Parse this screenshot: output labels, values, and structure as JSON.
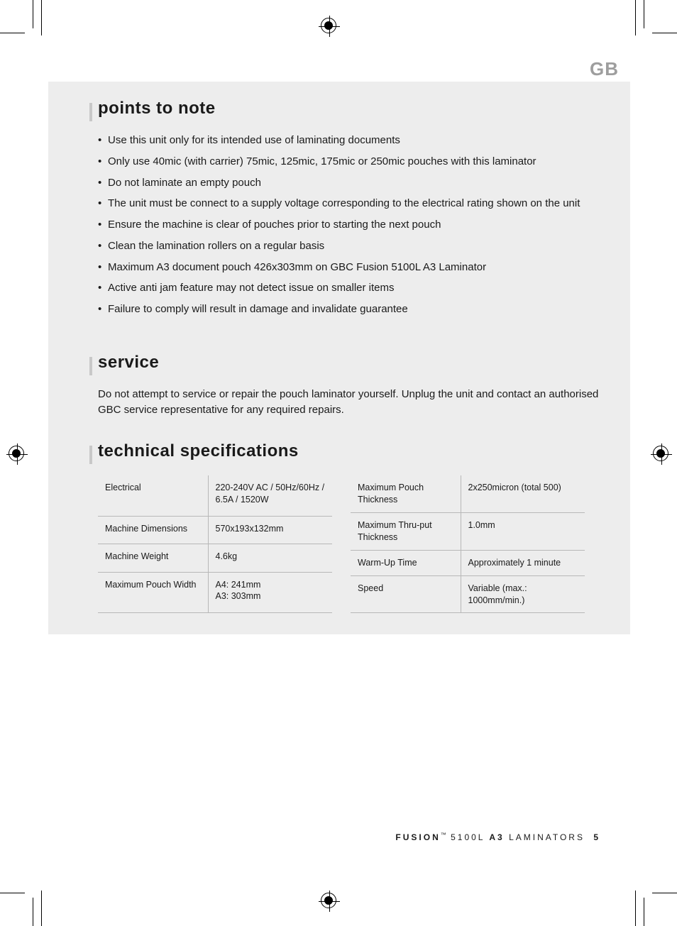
{
  "lang_code": "GB",
  "sections": {
    "points": {
      "heading": "points to note",
      "items": [
        "Use this unit only for its intended use of laminating documents",
        "Only use 40mic (with carrier) 75mic, 125mic, 175mic or 250mic pouches with this laminator",
        "Do not laminate an empty pouch",
        "The unit must be connect to a supply voltage corresponding to the electrical rating shown on the unit",
        "Ensure the machine is clear of pouches prior to starting the next pouch",
        "Clean the lamination rollers on a regular basis",
        "Maximum A3 document pouch 426x303mm on GBC Fusion 5100L A3 Laminator",
        "Active anti jam feature may not detect issue on smaller items",
        "Failure to comply will result in damage and invalidate guarantee"
      ]
    },
    "service": {
      "heading": "service",
      "body": "Do not attempt to service or repair the pouch laminator yourself. Unplug the unit and contact an authorised GBC service representative for any required repairs."
    },
    "tech": {
      "heading": "technical specifications",
      "left": [
        {
          "label": "Electrical",
          "value": "220-240V AC / 50Hz/60Hz / 6.5A / 1520W"
        },
        {
          "label": "Machine Dimensions",
          "value": "570x193x132mm"
        },
        {
          "label": "Machine Weight",
          "value": "4.6kg"
        },
        {
          "label": "Maximum Pouch Width",
          "value": "A4: 241mm\nA3: 303mm"
        }
      ],
      "right": [
        {
          "label": "Maximum Pouch Thickness",
          "value": "2x250micron (total 500)"
        },
        {
          "label": "Maximum Thru-put Thickness",
          "value": "1.0mm"
        },
        {
          "label": "Warm-Up Time",
          "value": "Approximately 1 minute"
        },
        {
          "label": "Speed",
          "value": "Variable (max.: 1000mm/min.)"
        }
      ]
    }
  },
  "footer": {
    "brand": "FUSION",
    "tm": "™",
    "model": "5100L",
    "size": "A3",
    "product": "LAMINATORS",
    "page": "5"
  },
  "colors": {
    "panel_bg": "#ededed",
    "accent": "#c8c8c8",
    "text": "#1a1a1a",
    "lang": "#9e9e9e",
    "rule": "#b8b8b8"
  }
}
